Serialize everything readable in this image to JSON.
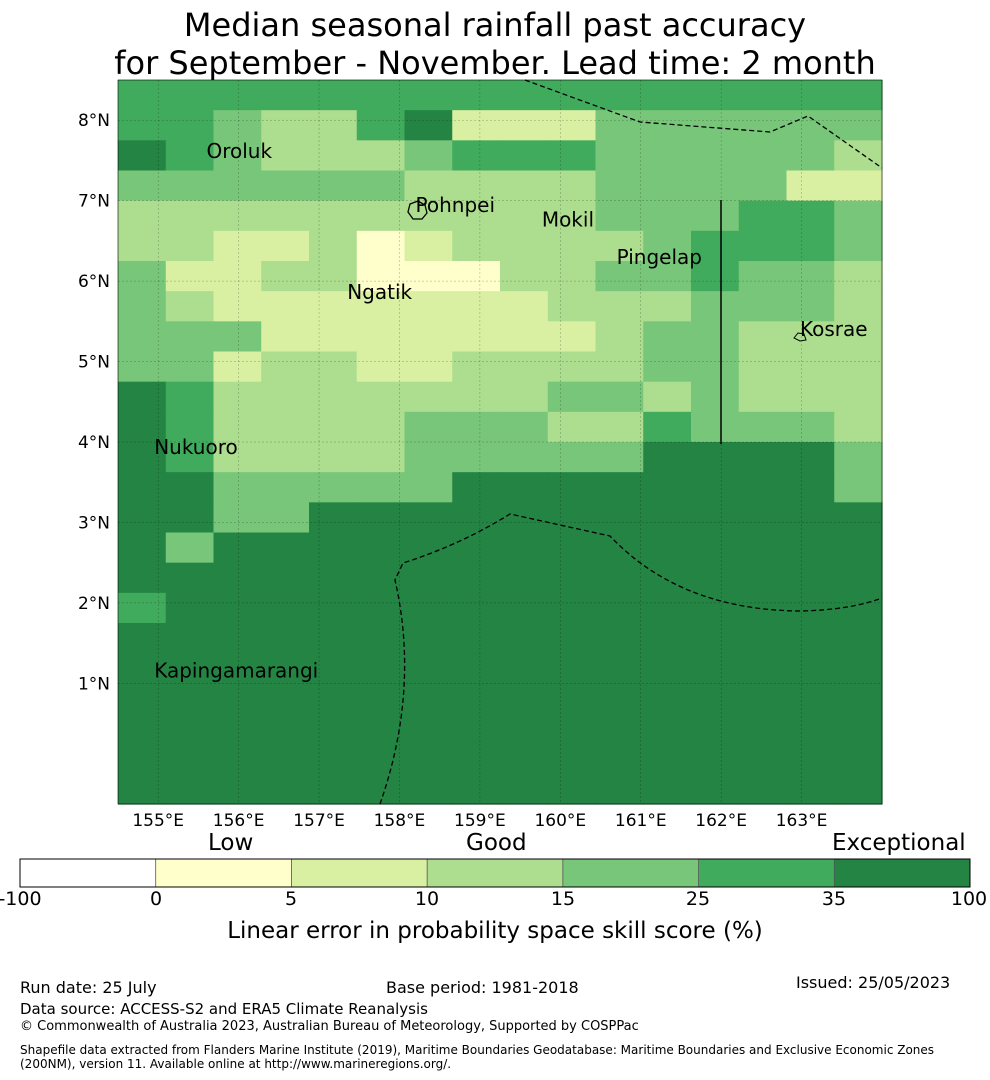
{
  "title_line1": "Median seasonal rainfall past accuracy",
  "title_line2": "for September - November. Lead time: 2 month",
  "map": {
    "lon_ticks": [
      "155°E",
      "156°E",
      "157°E",
      "158°E",
      "159°E",
      "160°E",
      "161°E",
      "162°E",
      "163°E"
    ],
    "lat_ticks": [
      "8°N",
      "7°N",
      "6°N",
      "5°N",
      "4°N",
      "3°N",
      "2°N",
      "1°N"
    ],
    "places": [
      {
        "name": "Oroluk",
        "lon": 155.6,
        "lat": 7.53
      },
      {
        "name": "Pohnpei",
        "lon": 158.2,
        "lat": 6.86
      },
      {
        "name": "Mokil",
        "lon": 159.77,
        "lat": 6.68
      },
      {
        "name": "Pingelap",
        "lon": 160.7,
        "lat": 6.21
      },
      {
        "name": "Ngatik",
        "lon": 157.35,
        "lat": 5.78
      },
      {
        "name": "Kosrae",
        "lon": 162.98,
        "lat": 5.32
      },
      {
        "name": "Nukuoro",
        "lon": 154.95,
        "lat": 3.85
      },
      {
        "name": "Kapingamarangi",
        "lon": 154.95,
        "lat": 1.07
      }
    ],
    "grid": {
      "rows": [
        "5555555555555555",
        "5543356222444444",
        "6543334555444443",
        "4444443333444422",
        "3333333333444554",
        "3322312333345554",
        "4223311133445443",
        "4322222223334443",
        "4442222222344333",
        "4423322333344333",
        "6533333334434333",
        "6533334443354443",
        "6533334444466664",
        "6644444666666664",
        "6644666666666666",
        "6466666666666666",
        "6666666666666666",
        "5666666666666666",
        "6666666666666666",
        "6666666666666666",
        "6666666666666666",
        "6666666666666666",
        "6666666666666666",
        "6666666666666666"
      ]
    }
  },
  "colorbar": {
    "categories": [
      "Low",
      "Good",
      "Exceptional"
    ],
    "bounds": [
      "-100",
      "0",
      "5",
      "10",
      "15",
      "25",
      "35",
      "100"
    ],
    "colors": [
      "#ffffff",
      "#ffffcc",
      "#d9f0a3",
      "#addd8e",
      "#78c679",
      "#41ab5d",
      "#238443"
    ],
    "caption": "Linear error in probability space skill score (%)"
  },
  "footer": {
    "run_date": "Run date: 25 July",
    "base_period": "Base period: 1981-2018",
    "issued": "Issued: 25/05/2023",
    "data_source": "Data source: ACCESS-S2 and ERA5 Climate Reanalysis",
    "copyright": "© Commonwealth of Australia 2023, Australian Bureau of Meteorology, Supported by COSPPac",
    "shapefile_line1": "Shapefile data extracted from Flanders Marine Institute (2019), Maritime Boundaries Geodatabase: Maritime Boundaries and Exclusive Economic Zones",
    "shapefile_line2": "(200NM), version 11. Available online at http://www.marineregions.org/."
  }
}
